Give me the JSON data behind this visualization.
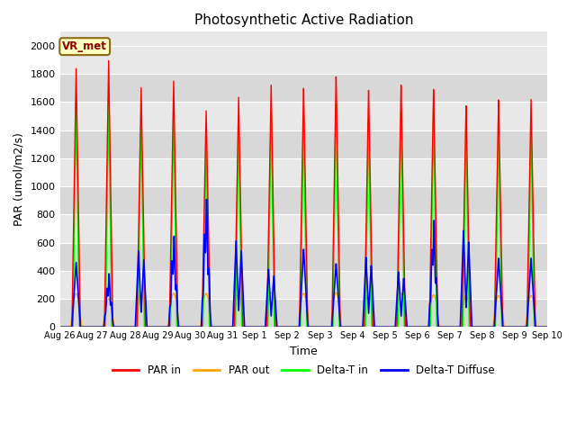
{
  "title": "Photosynthetic Active Radiation",
  "xlabel": "Time",
  "ylabel": "PAR (umol/m2/s)",
  "ylim": [
    0,
    2100
  ],
  "yticks": [
    0,
    200,
    400,
    600,
    800,
    1000,
    1200,
    1400,
    1600,
    1800,
    2000
  ],
  "x_labels": [
    "Aug 26",
    "Aug 27",
    "Aug 28",
    "Aug 29",
    "Aug 30",
    "Aug 31",
    "Sep 1",
    "Sep 2",
    "Sep 3",
    "Sep 4",
    "Sep 5",
    "Sep 6",
    "Sep 7",
    "Sep 8",
    "Sep 9",
    "Sep 10"
  ],
  "bg_color": "#e8e8e8",
  "fig_color": "#ffffff",
  "line_colors": {
    "par_in": "#ff0000",
    "par_out": "#ffa500",
    "delta_t_in": "#00ff00",
    "delta_t_diffuse": "#0000ff"
  },
  "legend_labels": [
    "PAR in",
    "PAR out",
    "Delta-T in",
    "Delta-T Diffuse"
  ],
  "vr_met_label": "VR_met",
  "vr_met_color": "#8B0000",
  "vr_met_bg": "#ffffc0",
  "n_days": 15,
  "peak_par_in": [
    1840,
    1900,
    1710,
    1760,
    1550,
    1650,
    1740,
    1720,
    1800,
    1700,
    1735,
    1700,
    1580,
    1620,
    1620
  ],
  "peak_par_out": [
    240,
    200,
    240,
    240,
    240,
    240,
    245,
    240,
    245,
    240,
    240,
    230,
    225,
    225,
    225
  ],
  "peak_delta_t_in": [
    1630,
    1650,
    1500,
    1540,
    1340,
    1440,
    1560,
    1520,
    1610,
    1490,
    1545,
    1560,
    1420,
    1420,
    1420
  ],
  "peak_delta_diffuse": [
    460,
    340,
    640,
    580,
    815,
    730,
    490,
    560,
    455,
    590,
    465,
    680,
    810,
    490,
    490
  ],
  "pts_per_day": 288
}
